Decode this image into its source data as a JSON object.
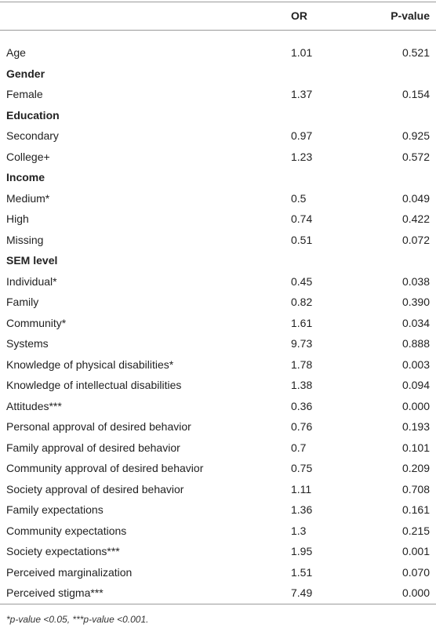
{
  "table": {
    "header": [
      "",
      "OR",
      "P-value"
    ],
    "rows": [
      [
        "Age",
        "1.01",
        "0.521"
      ],
      [
        "Gender"
      ],
      [
        "Female",
        "1.37",
        "0.154"
      ],
      [
        "Education"
      ],
      [
        "Secondary",
        "0.97",
        "0.925"
      ],
      [
        "College+",
        "1.23",
        "0.572"
      ],
      [
        "Income"
      ],
      [
        "Medium*",
        "0.5",
        "0.049"
      ],
      [
        "High",
        "0.74",
        "0.422"
      ],
      [
        "Missing",
        "0.51",
        "0.072"
      ],
      [
        "SEM level"
      ],
      [
        "Individual*",
        "0.45",
        "0.038"
      ],
      [
        "Family",
        "0.82",
        "0.390"
      ],
      [
        "Community*",
        "1.61",
        "0.034"
      ],
      [
        "Systems",
        "9.73",
        "0.888"
      ],
      [
        "Knowledge of physical disabilities*",
        "1.78",
        "0.003"
      ],
      [
        "Knowledge of intellectual disabilities",
        "1.38",
        "0.094"
      ],
      [
        "Attitudes***",
        "0.36",
        "0.000"
      ],
      [
        "Personal approval of desired behavior",
        "0.76",
        "0.193"
      ],
      [
        "Family approval of desired behavior",
        "0.7",
        "0.101"
      ],
      [
        "Community approval of desired behavior",
        "0.75",
        "0.209"
      ],
      [
        "Society approval of desired behavior",
        "1.11",
        "0.708"
      ],
      [
        "Family expectations",
        "1.36",
        "0.161"
      ],
      [
        "Community expectations",
        "1.3",
        "0.215"
      ],
      [
        "Society expectations***",
        "1.95",
        "0.001"
      ],
      [
        "Perceived marginalization",
        "1.51",
        "0.070"
      ],
      [
        "Perceived stigma***",
        "7.49",
        "0.000"
      ]
    ],
    "footnote": "*p-value <0.05, ***p-value <0.001."
  }
}
